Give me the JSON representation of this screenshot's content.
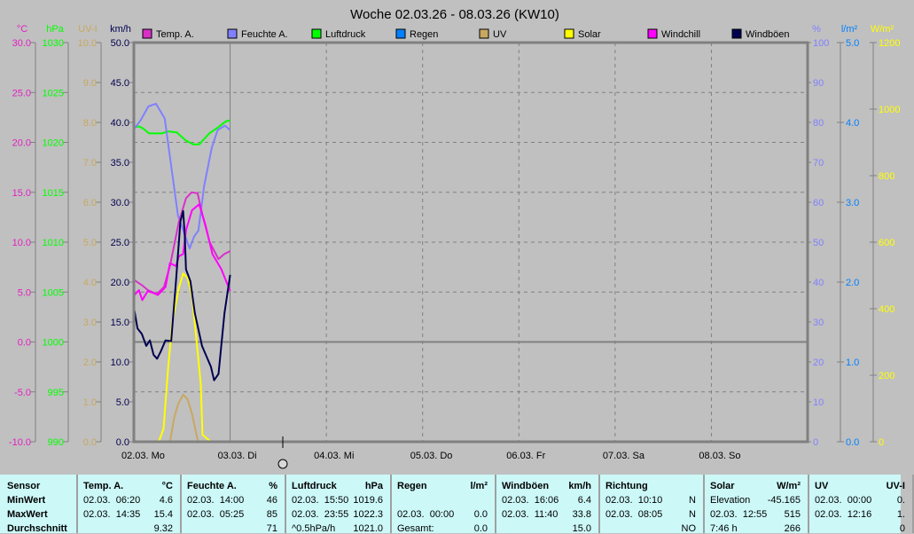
{
  "title": "Woche 02.03.26 - 08.03.26 (KW10)",
  "colors": {
    "temp": "#d830c8",
    "humidity": "#8080ff",
    "pressure": "#00ff00",
    "rain": "#0080ff",
    "uv": "#c8a860",
    "solar": "#ffff00",
    "windchill": "#ff00ff",
    "gusts": "#000050",
    "background": "#c0c0c0",
    "frame": "#808080",
    "table_bg": "#ccf8f8"
  },
  "chart_data": {
    "type": "line",
    "title": "Woche 02.03.26 - 08.03.26 (KW10)",
    "x_unit": "hours since 02.03. 00:00",
    "xlim": [
      0,
      168
    ],
    "x_ticks": [
      "02.03.  Mo",
      "03.03.  Di",
      "04.03.  Mi",
      "05.03.  Do",
      "06.03.  Fr",
      "07.03.  Sa",
      "08.03.  So"
    ],
    "grid": true,
    "legend": "top",
    "axes": {
      "temp": {
        "unit": "°C",
        "lim": [
          -10,
          30
        ],
        "ticks": [
          "30.0",
          "25.0",
          "20.0",
          "15.0",
          "10.0",
          "5.0",
          "0.0",
          "-5.0",
          "-10.0"
        ]
      },
      "pressure": {
        "unit": "hPa",
        "lim": [
          990,
          1030
        ],
        "ticks": [
          "1030",
          "1025",
          "1020",
          "1015",
          "1010",
          "1005",
          "1000",
          "995",
          "990"
        ]
      },
      "uv": {
        "unit": "UV-I",
        "lim": [
          0,
          10
        ],
        "ticks": [
          "10.0",
          "9.0",
          "8.0",
          "7.0",
          "6.0",
          "5.0",
          "4.0",
          "3.0",
          "2.0",
          "1.0",
          "0.0"
        ]
      },
      "wind": {
        "unit": "km/h",
        "lim": [
          0,
          50
        ],
        "ticks": [
          "50.0",
          "45.0",
          "40.0",
          "35.0",
          "30.0",
          "25.0",
          "20.0",
          "15.0",
          "10.0",
          "5.0",
          "0.0"
        ]
      },
      "humidity": {
        "unit": "%",
        "lim": [
          0,
          100
        ],
        "ticks": [
          "100",
          "90",
          "80",
          "70",
          "60",
          "50",
          "40",
          "30",
          "20",
          "10",
          "0"
        ]
      },
      "rain": {
        "unit": "l/m²",
        "lim": [
          0,
          5
        ],
        "ticks": [
          "5.0",
          "4.0",
          "3.0",
          "2.0",
          "1.0",
          "0.0"
        ]
      },
      "solar": {
        "unit": "W/m²",
        "lim": [
          0,
          1200
        ],
        "ticks": [
          "1200",
          "1000",
          "800",
          "600",
          "400",
          "200",
          "0"
        ]
      }
    },
    "series": [
      {
        "name": "Temp. A.",
        "key": "temp",
        "axis": "temp",
        "x": [
          0.1,
          2,
          3.5,
          5.7,
          7.5,
          9,
          11.2,
          13,
          14.4,
          15.9,
          17,
          18.9,
          21.1,
          22.5,
          24
        ],
        "y": [
          6.2,
          5.7,
          5.2,
          4.8,
          5.5,
          7.6,
          12.0,
          14.4,
          15.0,
          14.9,
          12.9,
          10.0,
          8.3,
          8.8,
          9.1
        ]
      },
      {
        "name": "Feuchte A.",
        "key": "humidity",
        "axis": "humidity",
        "x": [
          0.1,
          1.8,
          3.6,
          5.5,
          7.7,
          9.2,
          11.0,
          12.1,
          13.9,
          15.0,
          16.1,
          17.5,
          19.4,
          20.9,
          22.7,
          24
        ],
        "y": [
          78.4,
          80.7,
          84,
          84.7,
          81,
          69.9,
          56.6,
          53.6,
          48.4,
          51.4,
          52.9,
          64,
          73.6,
          78.1,
          79.2,
          78.1
        ]
      },
      {
        "name": "Luftdruck",
        "key": "pressure",
        "axis": "pressure",
        "x": [
          0.1,
          1.3,
          2.3,
          3.8,
          7.0,
          8.5,
          10.7,
          12.9,
          14.8,
          16.3,
          18.8,
          21.0,
          22.9,
          24
        ],
        "y": [
          1021.5,
          1021.6,
          1021.4,
          1020.9,
          1020.9,
          1021.1,
          1021.0,
          1020.2,
          1019.8,
          1019.8,
          1020.9,
          1021.5,
          1022.1,
          1022.2
        ]
      },
      {
        "name": "Regen",
        "key": "rain",
        "axis": "rain",
        "x": [
          0,
          24
        ],
        "y": [
          0,
          0
        ]
      },
      {
        "name": "UV",
        "key": "uv",
        "axis": "uv",
        "x": [
          9.0,
          10.1,
          11.1,
          12.3,
          13.4,
          14.5,
          15.6,
          16.0
        ],
        "y": [
          0,
          0.62,
          0.96,
          1.18,
          1.07,
          0.7,
          0.18,
          0
        ]
      },
      {
        "name": "Solar",
        "key": "solar",
        "axis": "solar",
        "x": [
          6.3,
          7.4,
          8.5,
          9.6,
          11.1,
          12.3,
          13.4,
          14.5,
          15.6,
          16.7,
          17.1,
          18.9
        ],
        "y": [
          3,
          39,
          217,
          359,
          457,
          506,
          493,
          439,
          306,
          173,
          21,
          3
        ]
      },
      {
        "name": "Windchill",
        "key": "windchill",
        "axis": "temp",
        "x": [
          0.15,
          1.25,
          2.1,
          3.45,
          4.9,
          6.0,
          7.9,
          9.0,
          10.5,
          11.2,
          12.3,
          13.0,
          14.5,
          16.3,
          17.8,
          19.6,
          21.8,
          24
        ],
        "y": [
          4.7,
          5.2,
          4.2,
          5.1,
          4.9,
          4.7,
          5.5,
          7.9,
          7.6,
          8.6,
          8.8,
          11.2,
          13.2,
          13.8,
          11.8,
          8.8,
          7.3,
          5.1
        ]
      },
      {
        "name": "Windböen",
        "key": "gusts",
        "axis": "wind",
        "x": [
          0.15,
          0.9,
          2.0,
          3.1,
          4.0,
          4.9,
          5.8,
          6.7,
          7.9,
          9.3,
          10.5,
          11.6,
          12.3,
          12.7,
          13.0,
          14.1,
          15.2,
          17.0,
          19.2,
          20.0,
          21.1,
          22.6,
          24
        ],
        "y": [
          16.4,
          14.2,
          13.5,
          12.0,
          12.7,
          10.9,
          10.4,
          11.3,
          12.7,
          12.6,
          20.1,
          27.6,
          28.9,
          25.7,
          21.6,
          20.1,
          16.1,
          12.0,
          9.4,
          7.7,
          8.5,
          16.1,
          20.9
        ]
      }
    ]
  },
  "table": {
    "sensor": {
      "header": "Sensor",
      "rows": [
        "MinWert",
        "MaxWert",
        "Durchschnitt"
      ]
    },
    "columns": [
      {
        "header": "Temp. A.",
        "unit": "°C",
        "rows": [
          [
            "02.03.  06:20",
            "4.6"
          ],
          [
            "02.03.  14:35",
            "15.4"
          ],
          [
            "",
            "9.32"
          ]
        ]
      },
      {
        "header": "Feuchte A.",
        "unit": "%",
        "rows": [
          [
            "02.03.  14:00",
            "46"
          ],
          [
            "02.03.  05:25",
            "85"
          ],
          [
            "",
            "71"
          ]
        ]
      },
      {
        "header": "Luftdruck",
        "unit": "hPa",
        "rows": [
          [
            "02.03.  15:50",
            "1019.6"
          ],
          [
            "02.03.  23:55",
            "1022.3"
          ],
          [
            "^0.5hPa/h",
            "1021.0"
          ]
        ]
      },
      {
        "header": "Regen",
        "unit": "l/m²",
        "rows": [
          [
            "",
            ""
          ],
          [
            "02.03.  00:00",
            "0.0"
          ],
          [
            "Gesamt:",
            "0.0"
          ]
        ]
      },
      {
        "header": "Windböen",
        "unit": "km/h",
        "rows": [
          [
            "02.03.  16:06",
            "6.4"
          ],
          [
            "02.03.  11:40",
            "33.8"
          ],
          [
            "",
            "15.0"
          ]
        ]
      },
      {
        "header": "Richtung",
        "unit": "",
        "rows": [
          [
            "02.03.  10:10",
            "N"
          ],
          [
            "02.03.  08:05",
            "N"
          ],
          [
            "",
            "NO"
          ]
        ]
      },
      {
        "header": "Solar",
        "unit": "W/m²",
        "rows": [
          [
            "Elevation",
            "-45.165"
          ],
          [
            "02.03.  12:55",
            "515"
          ],
          [
            "7:46 h",
            "266"
          ]
        ]
      },
      {
        "header": "UV",
        "unit": "UV-I",
        "rows": [
          [
            "02.03.  00:00",
            "0."
          ],
          [
            "02.03.  12:16",
            "1."
          ],
          [
            "",
            "0"
          ]
        ]
      }
    ]
  }
}
